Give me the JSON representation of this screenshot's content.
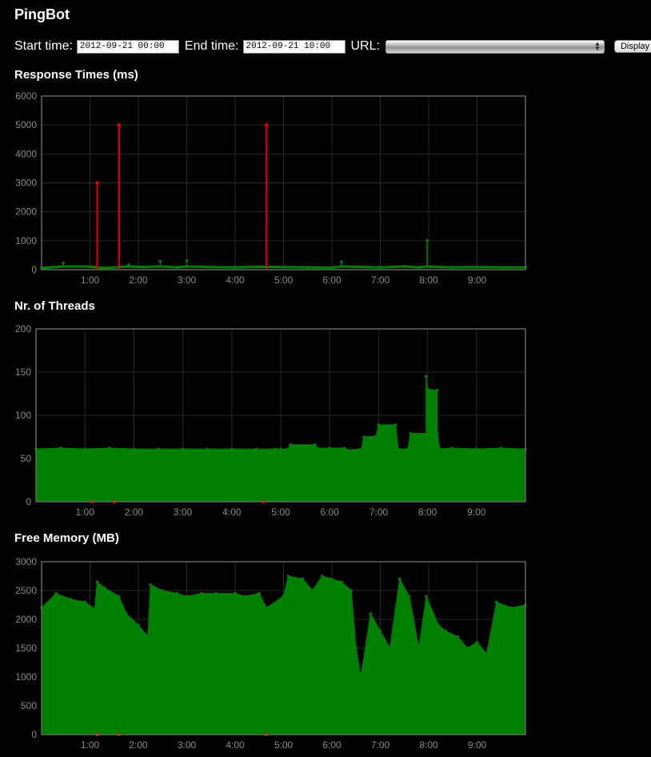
{
  "app": {
    "title": "PingBot"
  },
  "controls": {
    "start_label": "Start time:",
    "start_value": "2012-09-21 00:00",
    "end_label": "End time:",
    "end_value": "2012-09-21 10:00",
    "url_label": "URL:",
    "url_value": "",
    "display_label": "Display"
  },
  "colors": {
    "ok": "#008000",
    "error": "#ee0000",
    "grid": "#2a2a2a",
    "frame": "#666666",
    "ticks": "#8a8a8a"
  },
  "sections": [
    {
      "title": "Response Times (ms)"
    },
    {
      "title": "Nr. of Threads"
    },
    {
      "title": "Free Memory (MB)"
    }
  ],
  "chart_data": [
    {
      "type": "line",
      "title": "Response Times (ms)",
      "x_unit": "hours since 2012-09-21 00:00",
      "xlim": [
        0,
        10
      ],
      "ylim": [
        0,
        6000
      ],
      "yticks": [
        0,
        1000,
        2000,
        3000,
        4000,
        5000,
        6000
      ],
      "xticks": [
        1,
        2,
        3,
        4,
        5,
        6,
        7,
        8,
        9
      ],
      "xtick_labels": [
        "1:00",
        "2:00",
        "3:00",
        "4:00",
        "5:00",
        "6:00",
        "7:00",
        "8:00",
        "9:00"
      ],
      "grid": true,
      "series": [
        {
          "color": "#008000",
          "points": [
            [
              0.0,
              60
            ],
            [
              0.45,
              230
            ],
            [
              0.9,
              110
            ],
            [
              1.1,
              90
            ],
            [
              1.3,
              60
            ],
            [
              1.8,
              170
            ],
            [
              2.1,
              90
            ],
            [
              2.45,
              290
            ],
            [
              2.8,
              80
            ],
            [
              3.0,
              310
            ],
            [
              3.5,
              90
            ],
            [
              4.0,
              80
            ],
            [
              4.5,
              100
            ],
            [
              5.0,
              90
            ],
            [
              5.5,
              80
            ],
            [
              6.0,
              70
            ],
            [
              6.2,
              270
            ],
            [
              6.7,
              90
            ],
            [
              7.0,
              80
            ],
            [
              7.5,
              120
            ],
            [
              7.8,
              80
            ],
            [
              7.97,
              1010
            ],
            [
              8.05,
              100
            ],
            [
              8.5,
              80
            ],
            [
              9.0,
              90
            ],
            [
              9.5,
              80
            ],
            [
              10.0,
              80
            ]
          ]
        },
        {
          "color": "#ee0000",
          "points": [
            [
              1.15,
              3000
            ],
            [
              1.6,
              5000
            ],
            [
              4.65,
              5000
            ]
          ]
        }
      ]
    },
    {
      "type": "area",
      "title": "Nr. of Threads",
      "x_unit": "hours since 2012-09-21 00:00",
      "xlim": [
        0,
        10
      ],
      "ylim": [
        0,
        200
      ],
      "yticks": [
        0,
        50,
        100,
        150,
        200
      ],
      "xticks": [
        1,
        2,
        3,
        4,
        5,
        6,
        7,
        8,
        9
      ],
      "xtick_labels": [
        "1:00",
        "2:00",
        "3:00",
        "4:00",
        "5:00",
        "6:00",
        "7:00",
        "8:00",
        "9:00"
      ],
      "grid": true,
      "series": [
        {
          "color": "#008000",
          "points": [
            [
              0.0,
              61
            ],
            [
              0.5,
              62
            ],
            [
              1.0,
              61
            ],
            [
              1.5,
              62
            ],
            [
              2.0,
              61
            ],
            [
              2.5,
              61
            ],
            [
              3.0,
              61
            ],
            [
              3.5,
              61
            ],
            [
              4.0,
              61
            ],
            [
              4.5,
              61
            ],
            [
              4.9,
              61
            ],
            [
              5.0,
              61
            ],
            [
              5.15,
              61
            ],
            [
              5.2,
              66
            ],
            [
              5.7,
              66
            ],
            [
              5.75,
              62
            ],
            [
              6.0,
              62
            ],
            [
              6.3,
              62
            ],
            [
              6.35,
              60
            ],
            [
              6.65,
              61
            ],
            [
              6.7,
              75
            ],
            [
              6.95,
              76
            ],
            [
              7.0,
              89
            ],
            [
              7.35,
              89
            ],
            [
              7.4,
              61
            ],
            [
              7.6,
              61
            ],
            [
              7.65,
              79
            ],
            [
              8.2,
              79
            ],
            [
              8.25,
              61
            ],
            [
              8.5,
              62
            ],
            [
              9.0,
              61
            ],
            [
              9.5,
              62
            ],
            [
              10.0,
              61
            ]
          ]
        },
        {
          "color": "#008000",
          "points": [
            [
              7.97,
              145
            ],
            [
              8.0,
              130
            ],
            [
              8.2,
              129
            ]
          ]
        },
        {
          "color": "#ee0000",
          "points": [
            [
              1.15,
              0
            ],
            [
              1.6,
              0
            ],
            [
              4.65,
              0
            ]
          ]
        }
      ]
    },
    {
      "type": "area",
      "title": "Free Memory (MB)",
      "x_unit": "hours since 2012-09-21 00:00",
      "xlim": [
        0,
        10
      ],
      "ylim": [
        0,
        3000
      ],
      "yticks": [
        0,
        500,
        1000,
        1500,
        2000,
        2500,
        3000
      ],
      "xticks": [
        1,
        2,
        3,
        4,
        5,
        6,
        7,
        8,
        9
      ],
      "xtick_labels": [
        "1:00",
        "2:00",
        "3:00",
        "4:00",
        "5:00",
        "6:00",
        "7:00",
        "8:00",
        "9:00"
      ],
      "grid": true,
      "series": [
        {
          "color": "#008000",
          "points": [
            [
              0.0,
              2200
            ],
            [
              0.3,
              2450
            ],
            [
              0.6,
              2350
            ],
            [
              0.9,
              2300
            ],
            [
              1.1,
              2180
            ],
            [
              1.15,
              2650
            ],
            [
              1.3,
              2550
            ],
            [
              1.6,
              2400
            ],
            [
              1.75,
              2100
            ],
            [
              2.0,
              1900
            ],
            [
              2.2,
              1700
            ],
            [
              2.25,
              2600
            ],
            [
              2.5,
              2500
            ],
            [
              2.8,
              2450
            ],
            [
              3.0,
              2400
            ],
            [
              3.3,
              2450
            ],
            [
              3.6,
              2450
            ],
            [
              4.0,
              2450
            ],
            [
              4.2,
              2400
            ],
            [
              4.5,
              2450
            ],
            [
              4.65,
              2200
            ],
            [
              5.0,
              2400
            ],
            [
              5.1,
              2750
            ],
            [
              5.4,
              2700
            ],
            [
              5.6,
              2500
            ],
            [
              5.8,
              2750
            ],
            [
              6.0,
              2700
            ],
            [
              6.2,
              2650
            ],
            [
              6.4,
              2500
            ],
            [
              6.5,
              1500
            ],
            [
              6.6,
              1000
            ],
            [
              6.8,
              2100
            ],
            [
              7.0,
              1800
            ],
            [
              7.2,
              1500
            ],
            [
              7.4,
              2700
            ],
            [
              7.6,
              2400
            ],
            [
              7.8,
              1500
            ],
            [
              7.95,
              2400
            ],
            [
              8.2,
              1900
            ],
            [
              8.35,
              1800
            ],
            [
              8.6,
              1700
            ],
            [
              8.8,
              1500
            ],
            [
              9.0,
              1600
            ],
            [
              9.2,
              1400
            ],
            [
              9.4,
              2300
            ],
            [
              9.7,
              2200
            ],
            [
              10.0,
              2250
            ]
          ]
        },
        {
          "color": "#ee0000",
          "points": [
            [
              1.15,
              0
            ],
            [
              1.6,
              0
            ],
            [
              4.65,
              0
            ]
          ]
        }
      ]
    }
  ]
}
